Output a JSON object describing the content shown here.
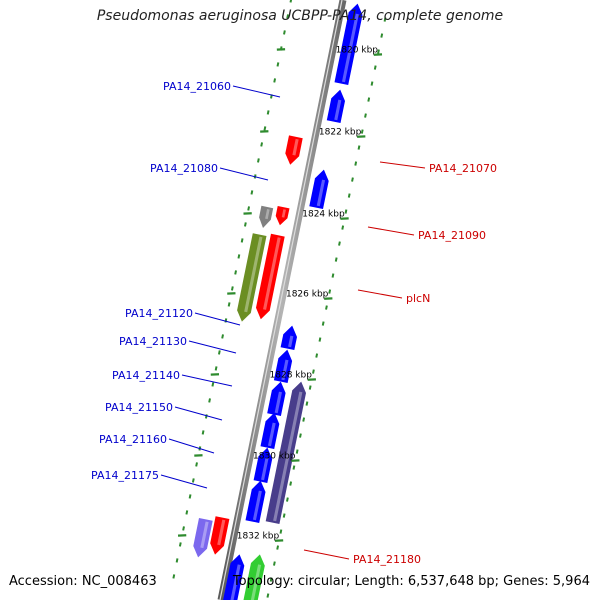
{
  "title": "Pseudomonas aeruginosa UCBPP-PA14, complete genome",
  "footer": {
    "accession": "Accession: NC_008463",
    "summary": "Topology: circular; Length: 6,537,648 bp; Genes: 5,964"
  },
  "colors": {
    "background": "#ffffff",
    "backbone": "#8c8c8c",
    "tick": "#2e8b2e",
    "forward_gene": "#0000ff",
    "reverse_gene": "#ff0000",
    "grey_gene": "#808080",
    "olive_gene": "#6b8e23",
    "slate_gene": "#483d8b",
    "lilac_gene": "#7b68ee",
    "green_gene": "#32cd32",
    "left_label": "#0000cc",
    "right_label": "#cc0000"
  },
  "ticks": [
    {
      "label": "1820 kbp"
    },
    {
      "label": "1822 kbp"
    },
    {
      "label": "1824 kbp"
    },
    {
      "label": "1826 kbp"
    },
    {
      "label": "1828 kbp"
    },
    {
      "label": "1830 kbp"
    },
    {
      "label": "1832 kbp"
    }
  ],
  "genes": [
    {
      "name": "",
      "strand": "forward",
      "color": "blue"
    },
    {
      "name": "PA14_21060",
      "strand": "forward",
      "color": "blue"
    },
    {
      "name": "PA14_21070",
      "strand": "reverse",
      "color": "red"
    },
    {
      "name": "PA14_21080",
      "strand": "forward",
      "color": "blue"
    },
    {
      "name": "",
      "strand": "reverse",
      "color": "red"
    },
    {
      "name": "PA14_21090",
      "strand": "reverse",
      "color": "grey"
    },
    {
      "name": "",
      "strand": "reverse",
      "color": "red"
    },
    {
      "name": "plcN",
      "strand": "reverse",
      "color": "olive"
    },
    {
      "name": "PA14_21120",
      "strand": "forward",
      "color": "blue"
    },
    {
      "name": "PA14_21130",
      "strand": "forward",
      "color": "blue"
    },
    {
      "name": "PA14_21140",
      "strand": "forward",
      "color": "slate"
    },
    {
      "name": "",
      "strand": "forward",
      "color": "blue"
    },
    {
      "name": "PA14_21150",
      "strand": "forward",
      "color": "blue"
    },
    {
      "name": "PA14_21160",
      "strand": "forward",
      "color": "blue"
    },
    {
      "name": "PA14_21175",
      "strand": "forward",
      "color": "blue"
    },
    {
      "name": "",
      "strand": "reverse",
      "color": "red"
    },
    {
      "name": "PA14_21180",
      "strand": "reverse",
      "color": "lilac"
    },
    {
      "name": "",
      "strand": "forward",
      "color": "green"
    },
    {
      "name": "",
      "strand": "forward",
      "color": "blue"
    }
  ]
}
